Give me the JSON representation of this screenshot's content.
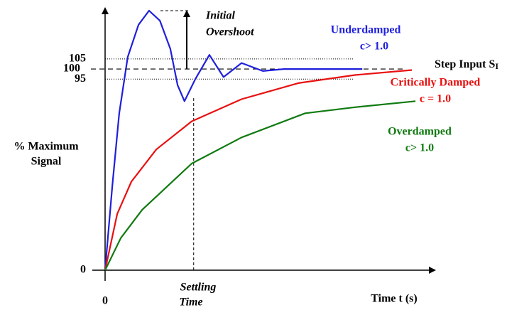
{
  "chart_data": {
    "type": "line",
    "y_label": [
      "% Maximum",
      "Signal"
    ],
    "x_label": "Time t (s)",
    "xlim": [
      0,
      10
    ],
    "ylim": [
      0,
      129
    ],
    "xticks": [
      0
    ],
    "yticks": [
      0,
      95,
      100,
      105
    ],
    "step_input": {
      "text": "Step Input S",
      "subscript": "I",
      "value": 100
    },
    "overshoot_label": [
      "Initial",
      "Overshoot"
    ],
    "settling": {
      "label": [
        "Settling",
        "Time"
      ],
      "x": 2.7
    },
    "series": [
      {
        "name": "Underdamped",
        "condition": "c> 1.0",
        "color": "#1f1fdc",
        "x": [
          0,
          0.22,
          0.43,
          0.69,
          1.02,
          1.34,
          1.67,
          1.99,
          2.21,
          2.42,
          2.75,
          3.18,
          3.61,
          4.16,
          4.81,
          5.45,
          7.84
        ],
        "values": [
          0,
          42,
          78,
          106,
          122,
          129,
          124,
          110,
          92,
          84,
          95,
          107,
          96,
          103,
          99,
          100,
          100
        ]
      },
      {
        "name": "Critically Damped",
        "condition": "c = 1.0",
        "color": "#e81010",
        "x": [
          0,
          0.37,
          0.8,
          1.56,
          2.64,
          4.16,
          5.89,
          7.62,
          9.35
        ],
        "values": [
          0,
          28,
          44,
          60,
          74,
          85,
          93,
          97,
          99.5
        ]
      },
      {
        "name": "Overdamped",
        "condition": "c> 1.0",
        "color": "#107a10",
        "x": [
          0,
          0.48,
          1.13,
          2.64,
          4.16,
          6.1,
          7.62,
          9.46
        ],
        "values": [
          0,
          16,
          30,
          53,
          66,
          78,
          81,
          84
        ]
      }
    ]
  }
}
